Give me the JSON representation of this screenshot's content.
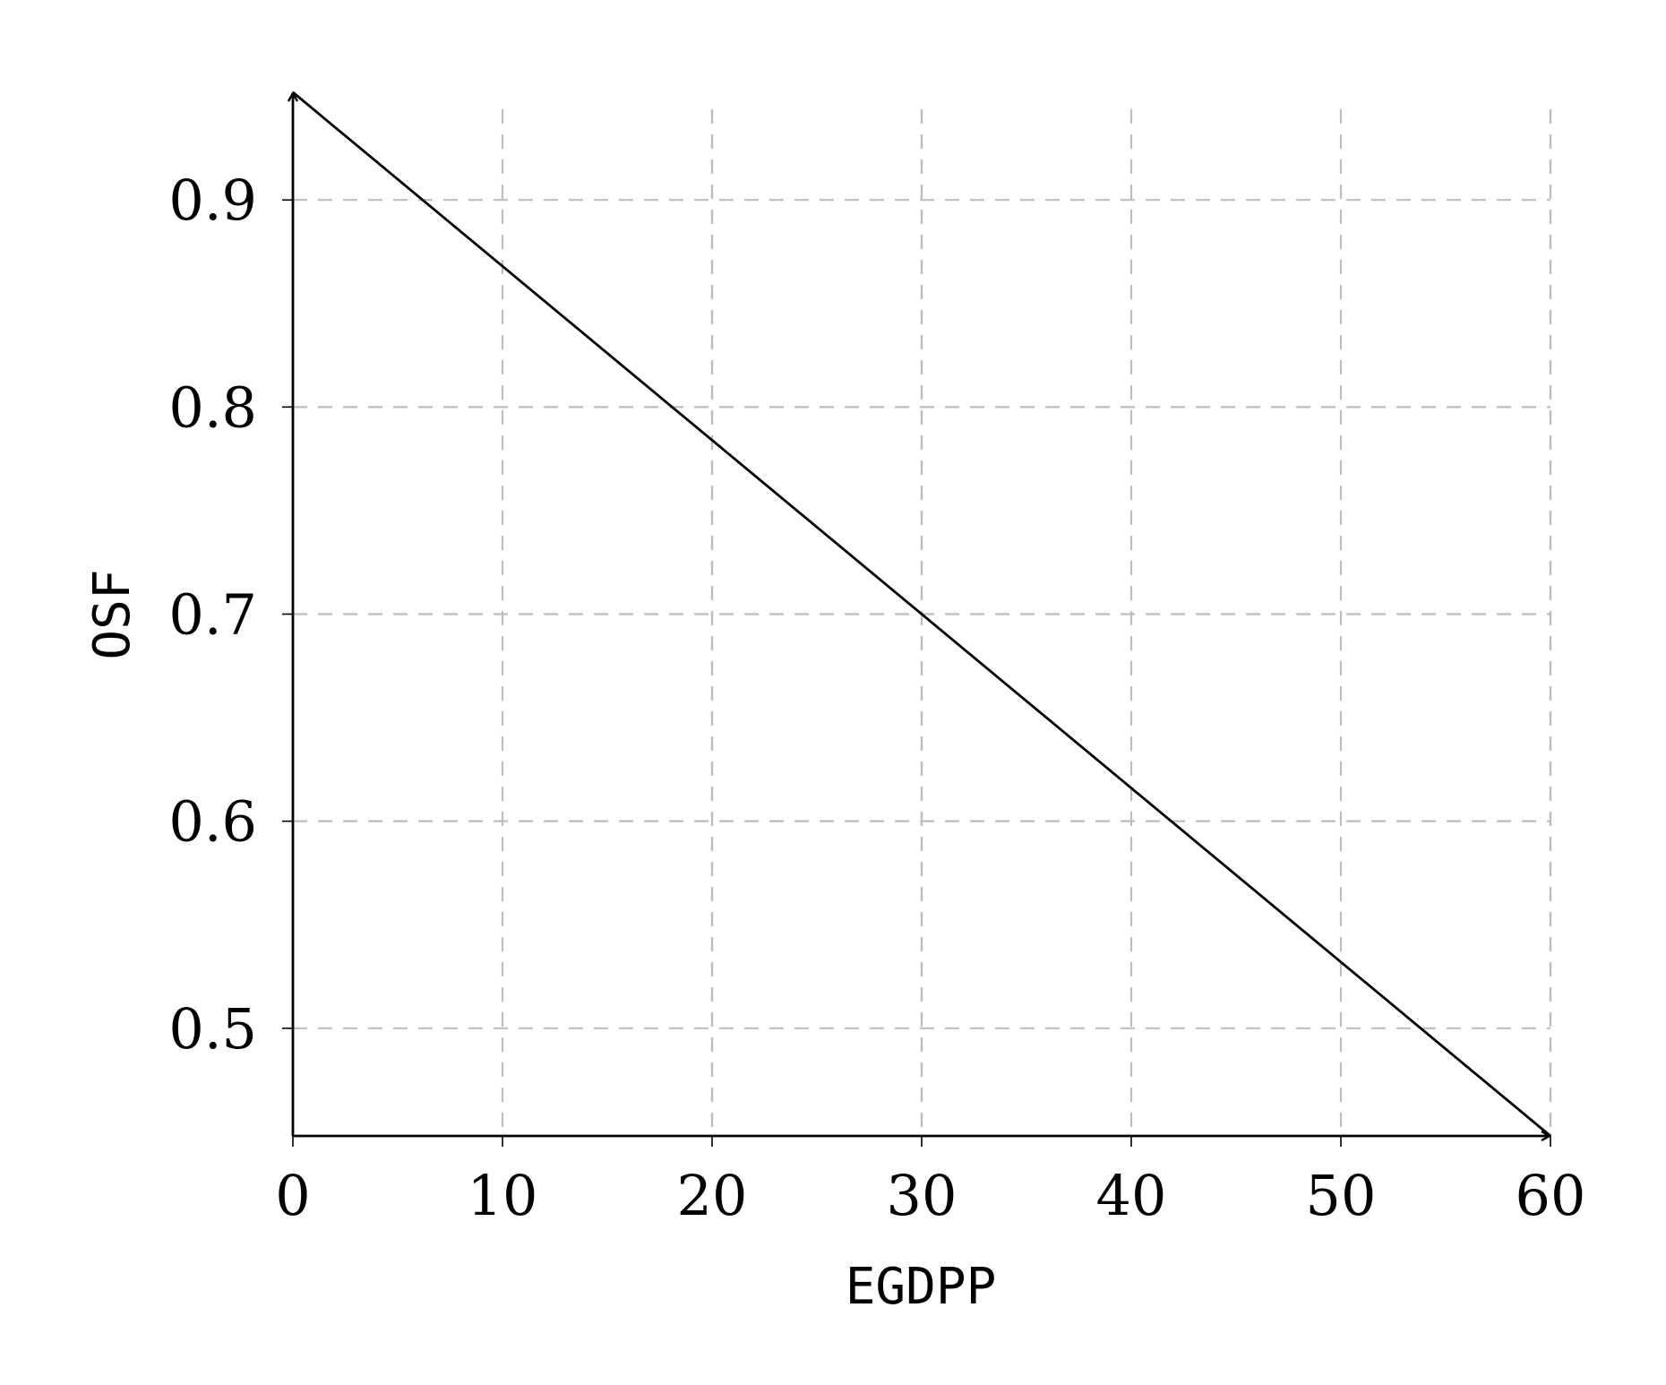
{
  "chart_data": {
    "type": "line",
    "xlabel": "EGDPP",
    "ylabel": "OSF",
    "xlim": [
      0,
      60
    ],
    "ylim": [
      0.448,
      0.952
    ],
    "x_ticks": [
      0,
      10,
      20,
      30,
      40,
      50,
      60
    ],
    "x_tick_labels": [
      "0",
      "10",
      "20",
      "30",
      "40",
      "50",
      "60"
    ],
    "y_ticks": [
      0.5,
      0.6,
      0.7,
      0.8,
      0.9
    ],
    "y_tick_labels": [
      "0.5",
      "0.6",
      "0.7",
      "0.8",
      "0.9"
    ],
    "grid": true,
    "series": [
      {
        "x": [
          0,
          60
        ],
        "y": [
          0.952,
          0.448
        ]
      }
    ],
    "colors": {
      "line": "#000000",
      "grid": "#bdbdbd",
      "axis": "#000000"
    }
  }
}
